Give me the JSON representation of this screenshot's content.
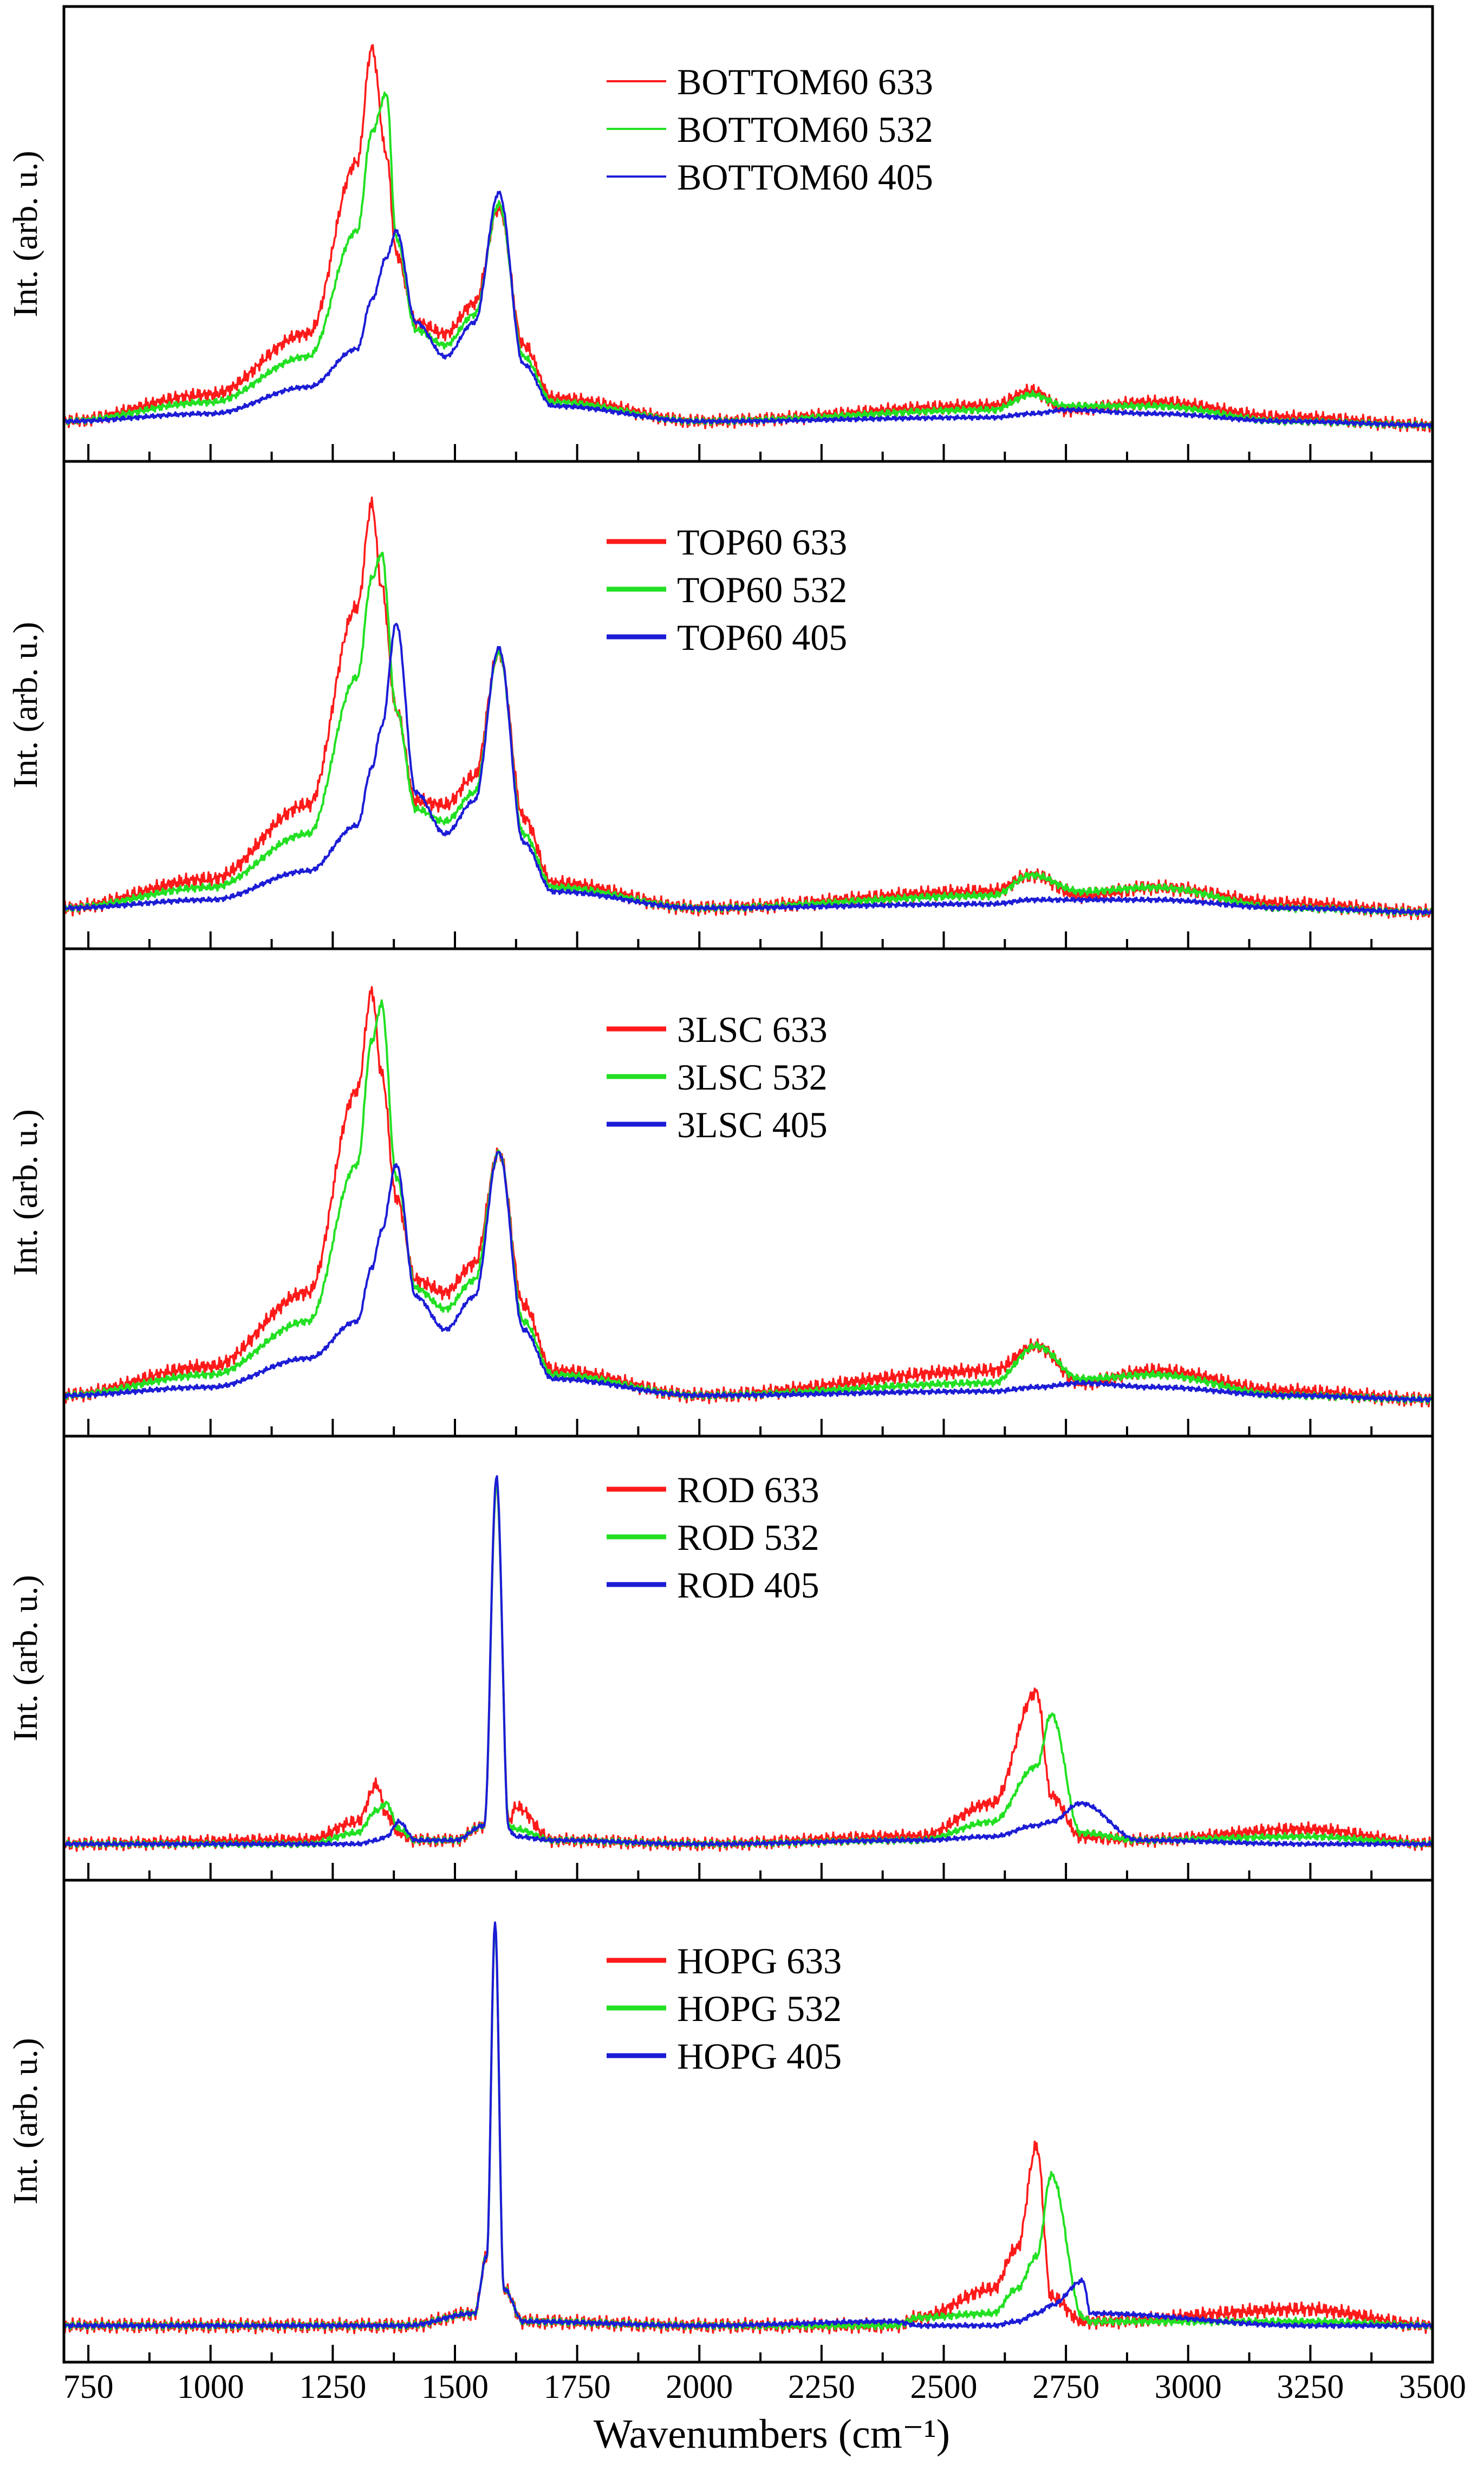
{
  "figure": {
    "xlabel": "Wavenumbers (cm⁻¹)",
    "xlim": [
      700,
      3500
    ],
    "xticks": [
      "750",
      "1000",
      "1250",
      "1500",
      "1750",
      "2000",
      "2250",
      "2500",
      "2750",
      "3000",
      "3250",
      "3500"
    ],
    "colors": {
      "633": "#ff1a1a",
      "532": "#22e022",
      "405": "#1c1cd6"
    }
  },
  "chart_data": [
    {
      "type": "line",
      "panel": "BOTTOM60",
      "ylabel": "Int. (arb. u.)",
      "ylim": [
        0,
        1.1
      ],
      "x": [
        700,
        1000,
        1200,
        1300,
        1330,
        1360,
        1380,
        1420,
        1480,
        1540,
        1590,
        1640,
        1700,
        2000,
        2600,
        2680,
        2750,
        2930,
        3200,
        3500
      ],
      "series": [
        {
          "name": "BOTTOM60 633",
          "laser": "633",
          "values": [
            0.02,
            0.09,
            0.25,
            0.7,
            1.0,
            0.72,
            0.46,
            0.28,
            0.25,
            0.33,
            0.58,
            0.22,
            0.08,
            0.02,
            0.06,
            0.1,
            0.05,
            0.07,
            0.03,
            0.01
          ]
        },
        {
          "name": "BOTTOM60 532",
          "laser": "532",
          "values": [
            0.02,
            0.07,
            0.19,
            0.52,
            0.78,
            0.88,
            0.5,
            0.26,
            0.22,
            0.3,
            0.59,
            0.19,
            0.07,
            0.02,
            0.05,
            0.09,
            0.06,
            0.06,
            0.02,
            0.01
          ]
        },
        {
          "name": "BOTTOM60 405",
          "laser": "405",
          "values": [
            0.02,
            0.04,
            0.11,
            0.21,
            0.34,
            0.45,
            0.52,
            0.28,
            0.19,
            0.28,
            0.62,
            0.17,
            0.06,
            0.02,
            0.03,
            0.04,
            0.05,
            0.04,
            0.02,
            0.01
          ]
        }
      ]
    },
    {
      "type": "line",
      "panel": "TOP60",
      "ylabel": "Int. (arb. u.)",
      "ylim": [
        0,
        1.1
      ],
      "x": [
        700,
        1000,
        1200,
        1300,
        1330,
        1350,
        1380,
        1420,
        1480,
        1540,
        1590,
        1640,
        1700,
        2000,
        2600,
        2680,
        2780,
        2930,
        3200,
        3500
      ],
      "series": [
        {
          "name": "TOP60 633",
          "laser": "633",
          "values": [
            0.02,
            0.09,
            0.27,
            0.75,
            1.0,
            0.8,
            0.5,
            0.28,
            0.27,
            0.34,
            0.64,
            0.24,
            0.08,
            0.02,
            0.06,
            0.1,
            0.05,
            0.07,
            0.03,
            0.01
          ]
        },
        {
          "name": "TOP60 532",
          "laser": "532",
          "values": [
            0.02,
            0.07,
            0.2,
            0.58,
            0.82,
            0.88,
            0.5,
            0.26,
            0.23,
            0.3,
            0.64,
            0.2,
            0.07,
            0.02,
            0.05,
            0.1,
            0.06,
            0.07,
            0.02,
            0.01
          ]
        },
        {
          "name": "TOP60 405",
          "laser": "405",
          "values": [
            0.02,
            0.04,
            0.11,
            0.22,
            0.36,
            0.46,
            0.71,
            0.3,
            0.2,
            0.28,
            0.65,
            0.18,
            0.06,
            0.02,
            0.03,
            0.04,
            0.04,
            0.04,
            0.02,
            0.01
          ]
        }
      ]
    },
    {
      "type": "line",
      "panel": "3LSC",
      "ylabel": "Int. (arb. u.)",
      "ylim": [
        0,
        1.1
      ],
      "x": [
        700,
        1000,
        1200,
        1300,
        1330,
        1350,
        1380,
        1420,
        1480,
        1540,
        1590,
        1640,
        1700,
        2000,
        2600,
        2690,
        2780,
        2930,
        3200,
        3500
      ],
      "series": [
        {
          "name": "3LSC 633",
          "laser": "633",
          "values": [
            0.02,
            0.09,
            0.27,
            0.76,
            1.0,
            0.8,
            0.5,
            0.3,
            0.27,
            0.34,
            0.61,
            0.24,
            0.08,
            0.02,
            0.08,
            0.14,
            0.05,
            0.08,
            0.03,
            0.01
          ]
        },
        {
          "name": "3LSC 532",
          "laser": "532",
          "values": [
            0.02,
            0.07,
            0.2,
            0.58,
            0.88,
            0.97,
            0.55,
            0.28,
            0.23,
            0.3,
            0.61,
            0.2,
            0.07,
            0.02,
            0.05,
            0.14,
            0.06,
            0.07,
            0.02,
            0.01
          ]
        },
        {
          "name": "3LSC 405",
          "laser": "405",
          "values": [
            0.02,
            0.04,
            0.11,
            0.2,
            0.33,
            0.42,
            0.58,
            0.26,
            0.18,
            0.26,
            0.61,
            0.18,
            0.06,
            0.02,
            0.03,
            0.04,
            0.05,
            0.04,
            0.02,
            0.01
          ]
        }
      ]
    },
    {
      "type": "line",
      "panel": "ROD",
      "ylabel": "Int. (arb. u.)",
      "ylim": [
        0,
        1.1
      ],
      "x": [
        700,
        1200,
        1300,
        1340,
        1360,
        1385,
        1420,
        1500,
        1560,
        1585,
        1610,
        1625,
        1700,
        2000,
        2450,
        2600,
        2690,
        2720,
        2780,
        2900,
        3240,
        3500
      ],
      "series": [
        {
          "name": "ROD 633",
          "laser": "633",
          "values": [
            0.01,
            0.02,
            0.07,
            0.17,
            0.09,
            0.04,
            0.02,
            0.02,
            0.06,
            0.98,
            0.07,
            0.11,
            0.02,
            0.01,
            0.03,
            0.12,
            0.42,
            0.14,
            0.03,
            0.02,
            0.05,
            0.01
          ]
        },
        {
          "name": "ROD 532",
          "laser": "532",
          "values": [
            0.01,
            0.01,
            0.04,
            0.1,
            0.12,
            0.05,
            0.02,
            0.02,
            0.06,
            0.98,
            0.06,
            0.05,
            0.02,
            0.01,
            0.02,
            0.07,
            0.22,
            0.36,
            0.04,
            0.02,
            0.03,
            0.01
          ]
        },
        {
          "name": "ROD 405",
          "laser": "405",
          "values": [
            0.01,
            0.01,
            0.01,
            0.02,
            0.03,
            0.07,
            0.02,
            0.02,
            0.06,
            1.0,
            0.05,
            0.03,
            0.02,
            0.01,
            0.02,
            0.03,
            0.06,
            0.07,
            0.12,
            0.02,
            0.01,
            0.01
          ]
        }
      ]
    },
    {
      "type": "line",
      "panel": "HOPG",
      "ylabel": "Int. (arb. u.)",
      "ylim": [
        0,
        1.1
      ],
      "x": [
        700,
        1400,
        1540,
        1565,
        1582,
        1600,
        1640,
        2000,
        2400,
        2450,
        2600,
        2650,
        2690,
        2720,
        2785,
        2800,
        3240,
        3500
      ],
      "series": [
        {
          "name": "HOPG 633",
          "laser": "633",
          "values": [
            0.01,
            0.01,
            0.04,
            0.18,
            0.99,
            0.1,
            0.02,
            0.01,
            0.01,
            0.03,
            0.1,
            0.2,
            0.45,
            0.08,
            0.02,
            0.02,
            0.05,
            0.01
          ]
        },
        {
          "name": "HOPG 532",
          "laser": "532",
          "values": [
            0.01,
            0.01,
            0.04,
            0.18,
            0.99,
            0.1,
            0.02,
            0.01,
            0.01,
            0.03,
            0.04,
            0.1,
            0.18,
            0.38,
            0.03,
            0.02,
            0.02,
            0.01
          ]
        },
        {
          "name": "HOPG 405",
          "laser": "405",
          "values": [
            0.01,
            0.01,
            0.04,
            0.18,
            1.0,
            0.1,
            0.02,
            0.01,
            0.02,
            0.01,
            0.01,
            0.02,
            0.04,
            0.06,
            0.12,
            0.04,
            0.01,
            0.01
          ]
        }
      ]
    }
  ]
}
